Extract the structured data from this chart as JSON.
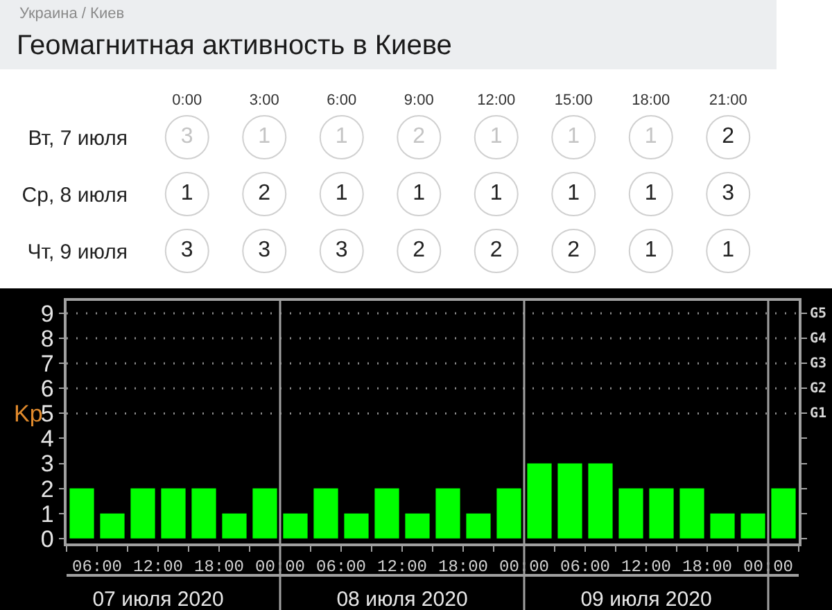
{
  "chart_data": [
    {
      "type": "heatmap",
      "subtitle": "Украина / Киев",
      "title": "Геомагнитная активность в Киеве",
      "categories": [
        "0:00",
        "3:00",
        "6:00",
        "9:00",
        "12:00",
        "15:00",
        "18:00",
        "21:00"
      ],
      "y_categories": [
        "Вт, 7 июля",
        "Ср, 8 июля",
        "Чт, 9 июля"
      ],
      "cells": [
        [
          3,
          1,
          1,
          2,
          1,
          1,
          1,
          2
        ],
        [
          1,
          2,
          1,
          1,
          1,
          1,
          1,
          3
        ],
        [
          3,
          3,
          3,
          2,
          2,
          2,
          1,
          1
        ]
      ],
      "colors": [
        [
          "#c4c4c4",
          "#c4c4c4",
          "#c4c4c4",
          "#c4c4c4",
          "#c4c4c4",
          "#c4c4c4",
          "#c4c4c4",
          "#222222"
        ],
        [
          "#222222",
          "#222222",
          "#222222",
          "#222222",
          "#222222",
          "#222222",
          "#222222",
          "#222222"
        ],
        [
          "#222222",
          "#222222",
          "#222222",
          "#222222",
          "#222222",
          "#222222",
          "#222222",
          "#222222"
        ]
      ],
      "data_labels": true
    },
    {
      "type": "bar",
      "ylabel": "Kp",
      "x": [
        "2020-07-07T04:30",
        "2020-07-07T07:30",
        "2020-07-07T10:30",
        "2020-07-07T13:30",
        "2020-07-07T16:30",
        "2020-07-07T19:30",
        "2020-07-07T22:30",
        "2020-07-08T01:30",
        "2020-07-08T04:30",
        "2020-07-08T07:30",
        "2020-07-08T10:30",
        "2020-07-08T13:30",
        "2020-07-08T16:30",
        "2020-07-08T19:30",
        "2020-07-08T22:30",
        "2020-07-09T01:30",
        "2020-07-09T04:30",
        "2020-07-09T07:30",
        "2020-07-09T10:30",
        "2020-07-09T13:30",
        "2020-07-09T16:30",
        "2020-07-09T19:30",
        "2020-07-09T22:30",
        "2020-07-10T01:30"
      ],
      "values": [
        2,
        1,
        2,
        2,
        2,
        1,
        2,
        1,
        2,
        1,
        2,
        1,
        2,
        1,
        2,
        3,
        3,
        3,
        2,
        2,
        2,
        1,
        1,
        2
      ],
      "color": "#00ff00",
      "xlim": [
        "2020-07-07T03:00",
        "2020-07-10T03:00"
      ],
      "xticks": [
        {
          "value": "2020-07-07T03:00",
          "label": null
        },
        {
          "value": "2020-07-07T06:00",
          "label": "06:00"
        },
        {
          "value": "2020-07-07T09:00",
          "label": null
        },
        {
          "value": "2020-07-07T12:00",
          "label": "12:00"
        },
        {
          "value": "2020-07-07T15:00",
          "label": null
        },
        {
          "value": "2020-07-07T18:00",
          "label": "18:00"
        },
        {
          "value": "2020-07-07T21:00",
          "label": null
        },
        {
          "value": "2020-07-08T00:00",
          "label": "00:00"
        },
        {
          "value": "2020-07-08T03:00",
          "label": null
        },
        {
          "value": "2020-07-08T06:00",
          "label": "06:00"
        },
        {
          "value": "2020-07-08T09:00",
          "label": null
        },
        {
          "value": "2020-07-08T12:00",
          "label": "12:00"
        },
        {
          "value": "2020-07-08T15:00",
          "label": null
        },
        {
          "value": "2020-07-08T18:00",
          "label": "18:00"
        },
        {
          "value": "2020-07-08T21:00",
          "label": null
        },
        {
          "value": "2020-07-09T00:00",
          "label": "00:00"
        },
        {
          "value": "2020-07-09T03:00",
          "label": null
        },
        {
          "value": "2020-07-09T06:00",
          "label": "06:00"
        },
        {
          "value": "2020-07-09T09:00",
          "label": null
        },
        {
          "value": "2020-07-09T12:00",
          "label": "12:00"
        },
        {
          "value": "2020-07-09T15:00",
          "label": null
        },
        {
          "value": "2020-07-09T18:00",
          "label": "18:00"
        },
        {
          "value": "2020-07-09T21:00",
          "label": null
        },
        {
          "value": "2020-07-10T00:00",
          "label": "00:00"
        },
        {
          "value": "2020-07-10T03:00",
          "label": null
        }
      ],
      "x2lim": [
        "2020-07-07T03:00",
        "2020-07-10T03:00"
      ],
      "x2ticks": [
        {
          "value": "2020-07-07T12:00",
          "label": "07 июля 2020"
        },
        {
          "value": "2020-07-08T12:00",
          "label": "08 июля 2020"
        },
        {
          "value": "2020-07-09T12:00",
          "label": "09 июля 2020"
        }
      ],
      "ylim": [
        -0.2,
        9.5
      ],
      "yticks": [
        0,
        1,
        2,
        3,
        4,
        5,
        6,
        7,
        8,
        9
      ],
      "ref_lines": [
        {
          "axis": "x",
          "value": "2020-07-08T00:00",
          "color": "#a0a0a0"
        },
        {
          "axis": "x",
          "value": "2020-07-09T00:00",
          "color": "#a0a0a0"
        },
        {
          "axis": "x",
          "value": "2020-07-10T00:00",
          "color": "#a0a0a0"
        },
        {
          "axis": "y",
          "value": 5,
          "label": "G1",
          "color": "#8c8c8c",
          "line_style": "dotted"
        },
        {
          "axis": "y",
          "value": 6,
          "label": "G2",
          "color": "#8c8c8c",
          "line_style": "dotted"
        },
        {
          "axis": "y",
          "value": 7,
          "label": "G3",
          "color": "#8c8c8c",
          "line_style": "dotted"
        },
        {
          "axis": "y",
          "value": 8,
          "label": "G4",
          "color": "#8c8c8c",
          "line_style": "dotted"
        },
        {
          "axis": "y",
          "value": 9,
          "label": "G5",
          "color": "#8c8c8c",
          "line_style": "dotted"
        }
      ]
    }
  ]
}
